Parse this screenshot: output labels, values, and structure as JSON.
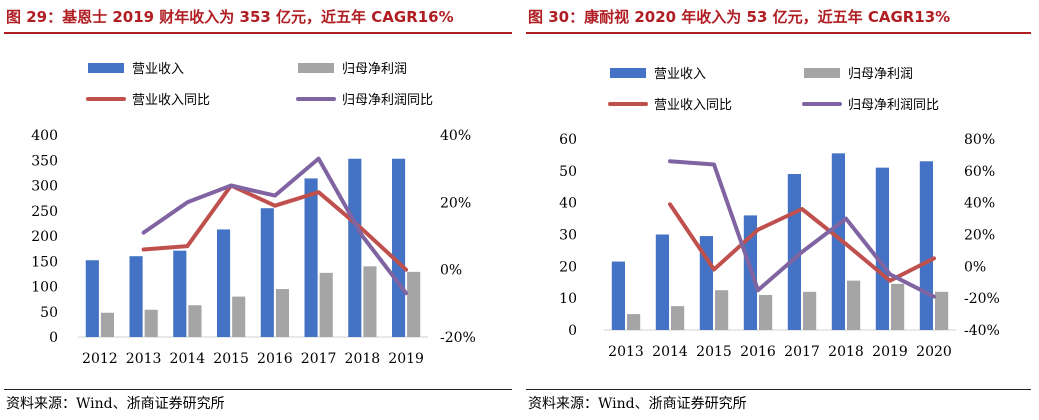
{
  "left": {
    "title": "图 29：基恩士 2019 财年收入为 353 亿元，近五年 CAGR16%",
    "source": "资料来源：Wind、浙商证券研究所",
    "legend": [
      "营业收入",
      "归母净利润",
      "营业收入同比",
      "归母净利润同比"
    ]
  },
  "right": {
    "title": "图 30：康耐视 2020 年收入为 53 亿元，近五年 CAGR13%",
    "source": "资料来源：Wind、浙商证券研究所",
    "legend": [
      "营业收入",
      "归母净利润",
      "营业收入同比",
      "归母净利润同比"
    ]
  },
  "colors": {
    "revenue": "#4472c4",
    "profit": "#a5a5a5",
    "revenue_yoy": "#c0504d",
    "profit_yoy": "#8064a2",
    "accent": "#b01e23"
  },
  "chart_data": [
    {
      "type": "bar",
      "title": "图 29：基恩士 2019 财年收入为 353 亿元，近五年 CAGR16%",
      "categories": [
        "2012",
        "2013",
        "2014",
        "2015",
        "2016",
        "2017",
        "2018",
        "2019"
      ],
      "ylim": [
        0,
        400
      ],
      "y_ticks": [
        "0",
        "50",
        "100",
        "150",
        "200",
        "250",
        "300",
        "350",
        "400"
      ],
      "y2lim": [
        -20,
        40
      ],
      "y2_ticks": [
        "-20%",
        "0%",
        "20%",
        "40%"
      ],
      "series": [
        {
          "name": "营业收入",
          "axis": "left",
          "kind": "bar",
          "values": [
            152,
            160,
            171,
            213,
            255,
            314,
            353,
            353
          ]
        },
        {
          "name": "归母净利润",
          "axis": "left",
          "kind": "bar",
          "values": [
            48,
            54,
            63,
            80,
            95,
            127,
            140,
            129
          ]
        },
        {
          "name": "营业收入同比",
          "axis": "right",
          "kind": "line",
          "values": [
            null,
            6,
            7,
            25,
            19,
            23,
            12,
            0
          ]
        },
        {
          "name": "归母净利润同比",
          "axis": "right",
          "kind": "line",
          "values": [
            null,
            11,
            20,
            25,
            22,
            33,
            10,
            -7
          ]
        }
      ]
    },
    {
      "type": "bar",
      "title": "图 30：康耐视 2020 年收入为 53 亿元，近五年 CAGR13%",
      "categories": [
        "2013",
        "2014",
        "2015",
        "2016",
        "2017",
        "2018",
        "2019",
        "2020"
      ],
      "ylim": [
        0,
        60
      ],
      "y_ticks": [
        "0",
        "10",
        "20",
        "30",
        "40",
        "50",
        "60"
      ],
      "y2lim": [
        -40,
        80
      ],
      "y2_ticks": [
        "-40%",
        "-20%",
        "0%",
        "20%",
        "40%",
        "60%",
        "80%"
      ],
      "series": [
        {
          "name": "营业收入",
          "axis": "left",
          "kind": "bar",
          "values": [
            21.5,
            30,
            29.5,
            36,
            49,
            55.5,
            51,
            53
          ]
        },
        {
          "name": "归母净利润",
          "axis": "left",
          "kind": "bar",
          "values": [
            5,
            7.5,
            12.5,
            11,
            12,
            15.5,
            14.5,
            12
          ]
        },
        {
          "name": "营业收入同比",
          "axis": "right",
          "kind": "line",
          "values": [
            null,
            39,
            -2,
            23,
            36,
            14,
            -9,
            5
          ]
        },
        {
          "name": "归母净利润同比",
          "axis": "right",
          "kind": "line",
          "values": [
            null,
            66,
            64,
            -15,
            9,
            30,
            -5,
            -19
          ]
        }
      ]
    }
  ]
}
